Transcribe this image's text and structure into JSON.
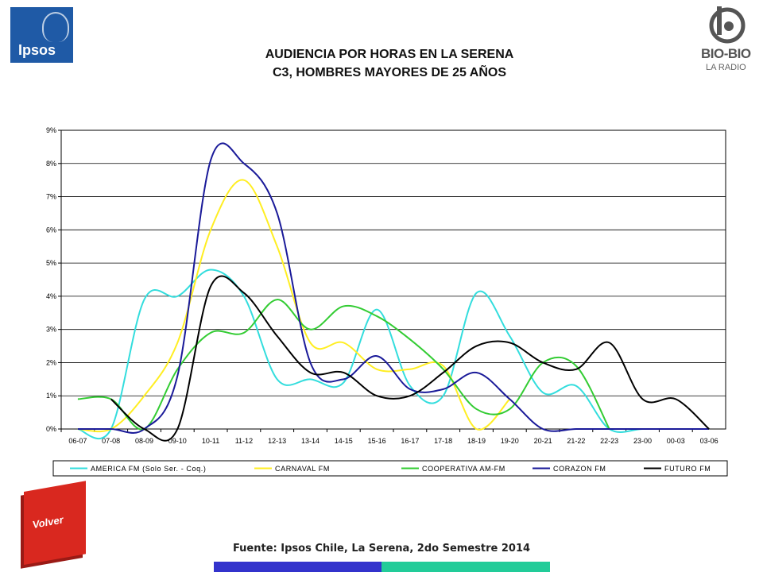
{
  "header": {
    "title_line1": "AUDIENCIA POR HORAS EN LA SERENA",
    "title_line2": "C3, HOMBRES MAYORES DE 25 AÑOS",
    "left_logo": "Ipsos",
    "right_logo": "BIO-BIO",
    "right_logo_sub": "LA RADIO"
  },
  "footer": {
    "source": "Fuente: Ipsos Chile, La Serena, 2do Semestre 2014",
    "volver_label": "Volver"
  },
  "chart_data": {
    "type": "line",
    "title": "",
    "xlabel": "",
    "ylabel": "",
    "ylim": [
      0,
      9
    ],
    "yticks": [
      "0%",
      "1%",
      "2%",
      "3%",
      "4%",
      "5%",
      "6%",
      "7%",
      "8%",
      "9%"
    ],
    "grid": true,
    "legend_position": "bottom",
    "categories": [
      "06-07",
      "07-08",
      "08-09",
      "09-10",
      "10-11",
      "11-12",
      "12-13",
      "13-14",
      "14-15",
      "15-16",
      "16-17",
      "17-18",
      "18-19",
      "19-20",
      "20-21",
      "21-22",
      "22-23",
      "23-00",
      "00-03",
      "03-06"
    ],
    "series": [
      {
        "name": "AMERICA FM  (Solo Ser. - Coq.)",
        "color": "#33dddd",
        "values": [
          0,
          0,
          3.9,
          4.0,
          4.8,
          4.0,
          1.5,
          1.5,
          1.4,
          3.6,
          1.3,
          1.0,
          4.1,
          2.8,
          1.1,
          1.3,
          0,
          0,
          0,
          0
        ]
      },
      {
        "name": "CARNAVAL FM",
        "color": "#ffee22",
        "values": [
          0,
          0,
          1.0,
          2.6,
          6.0,
          7.5,
          5.5,
          2.6,
          2.6,
          1.8,
          1.8,
          1.9,
          0,
          0.9,
          null,
          null,
          null,
          null,
          null,
          null
        ]
      },
      {
        "name": "COOPERATIVA AM-FM",
        "color": "#33cc33",
        "values": [
          0.9,
          0.9,
          0,
          1.8,
          2.9,
          2.9,
          3.9,
          3.0,
          3.7,
          3.4,
          2.7,
          1.8,
          0.6,
          0.6,
          2.0,
          1.9,
          0,
          null,
          null,
          null
        ]
      },
      {
        "name": "CORAZON FM",
        "color": "#1a1a99",
        "values": [
          0,
          0,
          0,
          1.6,
          8.1,
          8.0,
          6.5,
          2.0,
          1.5,
          2.2,
          1.2,
          1.2,
          1.7,
          0.9,
          0,
          0,
          0,
          0,
          0,
          0
        ]
      },
      {
        "name": "FUTURO FM",
        "color": "#000000",
        "values": [
          null,
          0.9,
          0,
          0,
          4.3,
          4.1,
          2.8,
          1.7,
          1.7,
          1.0,
          1.0,
          1.7,
          2.5,
          2.6,
          2.0,
          1.8,
          2.6,
          0.9,
          0.9,
          0
        ]
      }
    ]
  }
}
